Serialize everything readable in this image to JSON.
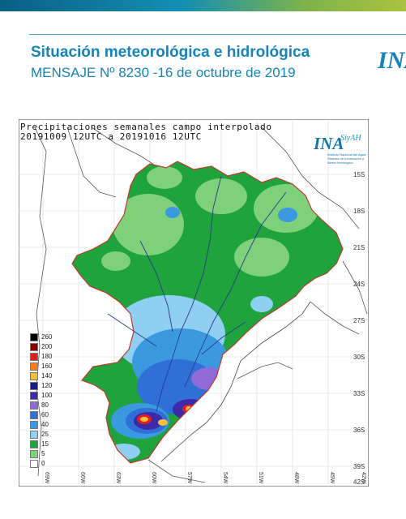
{
  "header": {
    "title": "Situación meteorológica e hidrológica",
    "subtitle": "MENSAJE Nº 8230 -16 de octubre de 2019",
    "logo_text": "INA"
  },
  "map": {
    "heading_line1": "Precipitaciones semanales campo interpolado",
    "heading_line2": "20191009 12UTC a 20191016 12UTC",
    "logo_text": "INA",
    "logo_sub": "SiyAH",
    "logo_tagline": "Instituto Nacional del Agua · Sistema de Información y Alerta Hidrológico",
    "lat_labels": [
      "15S",
      "18S",
      "21S",
      "24S",
      "27S",
      "30S",
      "33S",
      "36S",
      "39S",
      "42S"
    ],
    "lon_labels": [
      "69W",
      "66W",
      "63W",
      "60W",
      "57W",
      "54W",
      "51W",
      "48W",
      "45W",
      "42W"
    ],
    "legend": [
      {
        "label": "260",
        "color": "#000000"
      },
      {
        "label": "200",
        "color": "#8b0000"
      },
      {
        "label": "180",
        "color": "#e02020"
      },
      {
        "label": "160",
        "color": "#ff7a1a"
      },
      {
        "label": "140",
        "color": "#f2c03a"
      },
      {
        "label": "120",
        "color": "#1a1a8c"
      },
      {
        "label": "100",
        "color": "#3d2aa8"
      },
      {
        "label": "80",
        "color": "#8f6ad8"
      },
      {
        "label": "60",
        "color": "#2f6fd6"
      },
      {
        "label": "40",
        "color": "#3b99e0"
      },
      {
        "label": "25",
        "color": "#8fd0f2"
      },
      {
        "label": "15",
        "color": "#1fa33d"
      },
      {
        "label": "5",
        "color": "#7fd07a"
      },
      {
        "label": "0",
        "color": "#ffffff"
      }
    ]
  }
}
